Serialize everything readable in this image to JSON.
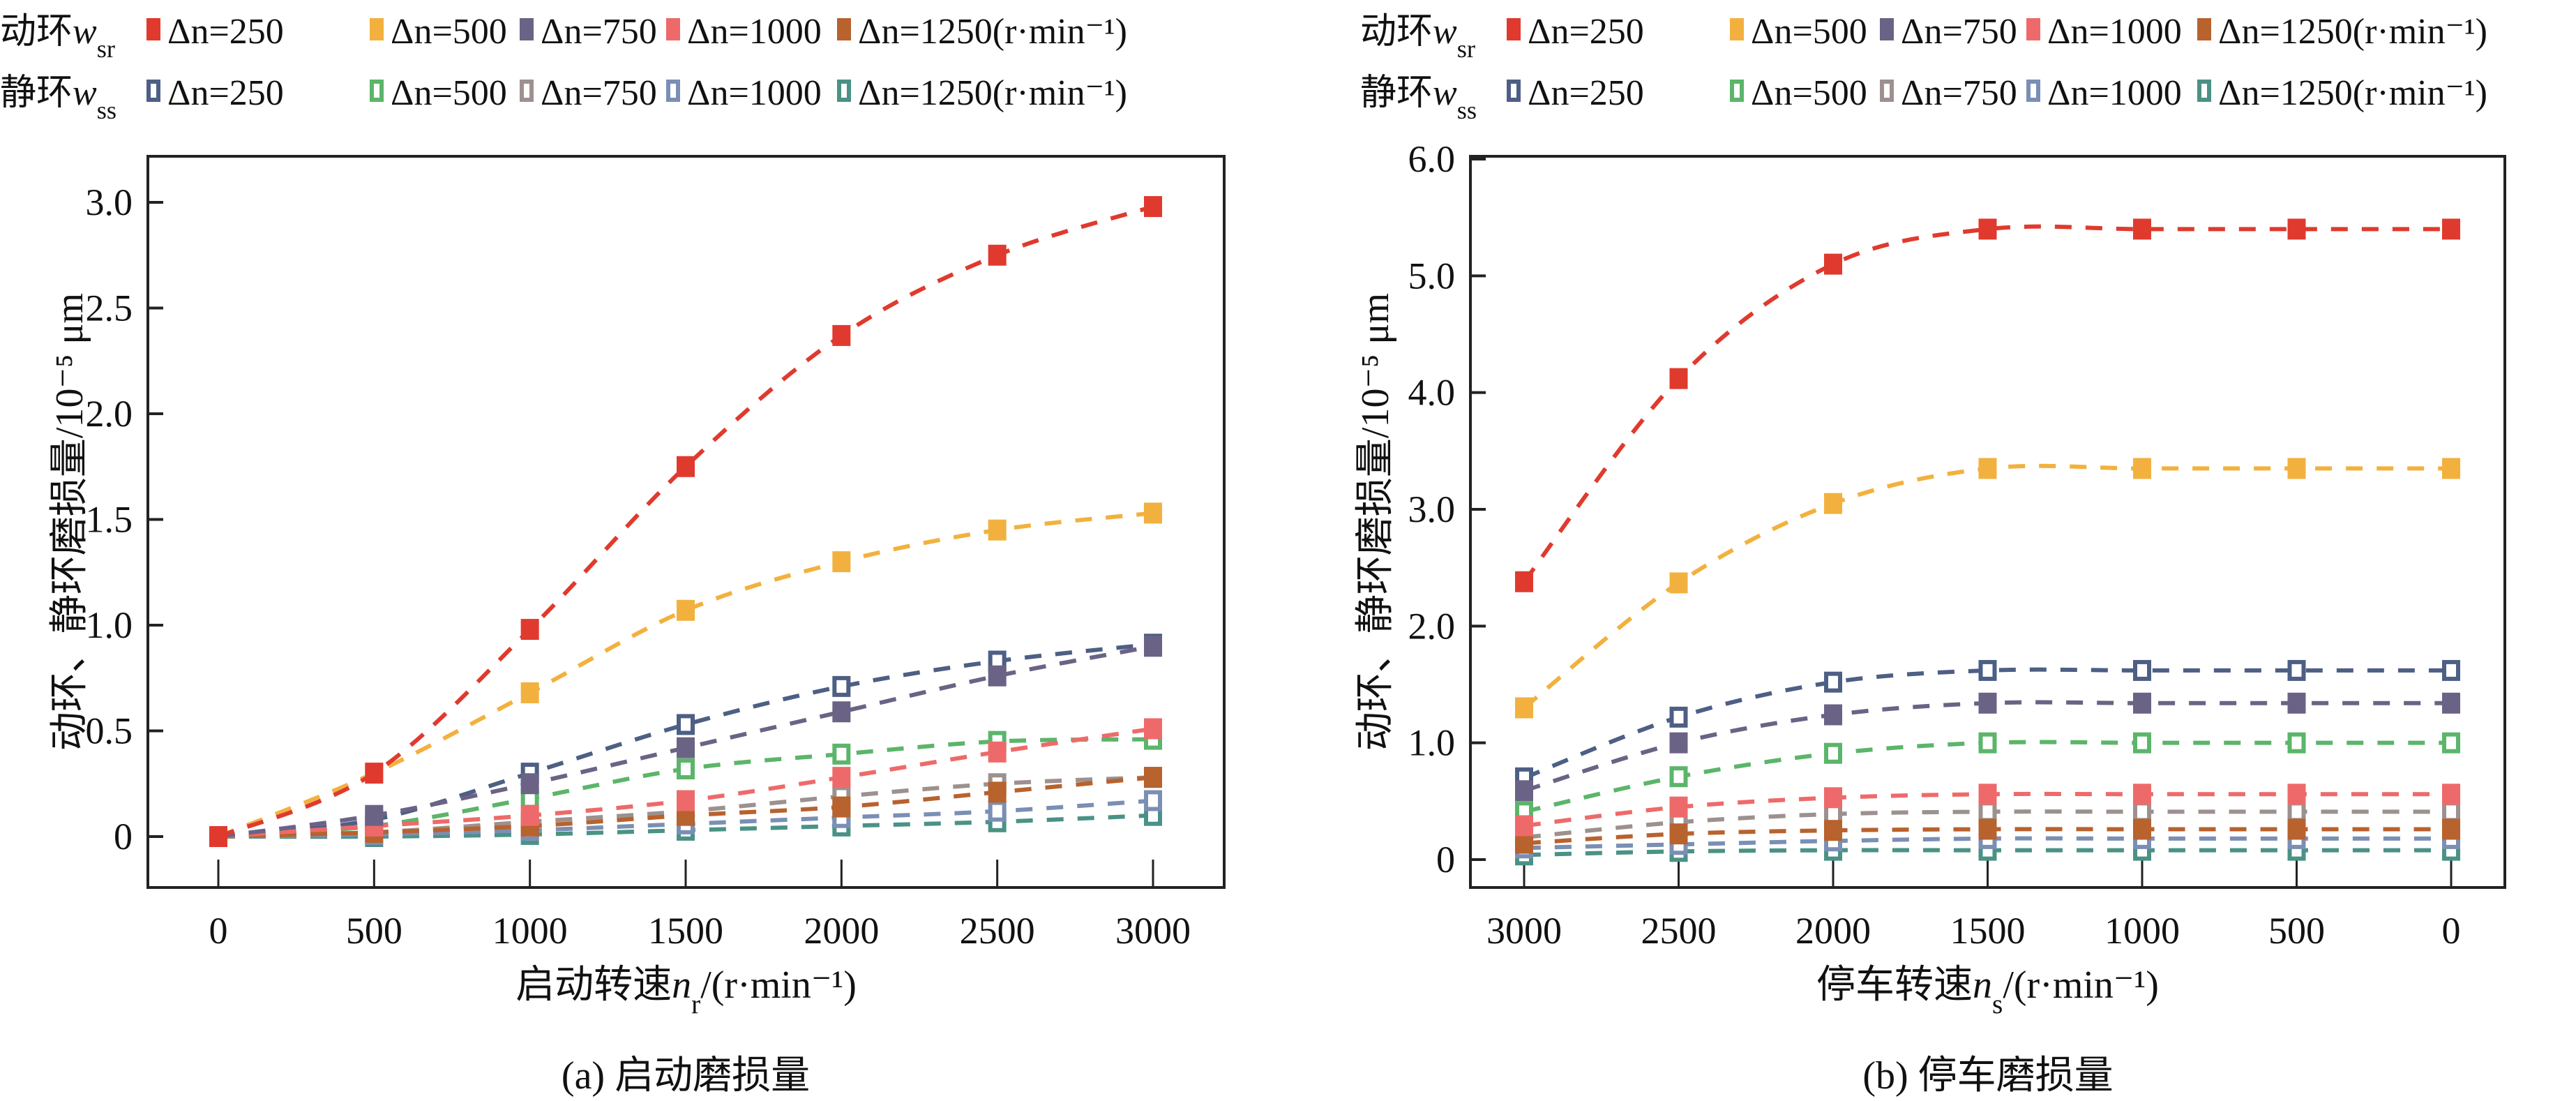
{
  "legend": {
    "rows": [
      {
        "title": "动环",
        "var": "w",
        "sub": "sr",
        "filled": true,
        "entries": [
          "Δn=250",
          "Δn=500",
          "Δn=750",
          "Δn=1000",
          "Δn=1250(r·min⁻¹)"
        ],
        "colors": [
          "#e03a2e",
          "#f2b13e",
          "#6b6385",
          "#ee6a6a",
          "#b8622e"
        ]
      },
      {
        "title": "静环",
        "var": "w",
        "sub": "ss",
        "filled": false,
        "entries": [
          "Δn=250",
          "Δn=500",
          "Δn=750",
          "Δn=1000",
          "Δn=1250(r·min⁻¹)"
        ],
        "colors": [
          "#4d5f84",
          "#5bb56a",
          "#9c918e",
          "#7b8fb5",
          "#4a9285"
        ]
      }
    ]
  },
  "chart_data": [
    {
      "type": "line",
      "caption": "(a) 启动磨损量",
      "xlabel": "启动转速n_r/(r·min⁻¹)",
      "ylabel": "动环、静环磨损量/10⁻⁵ μm",
      "x": [
        0,
        500,
        1000,
        1500,
        2000,
        2500,
        3000
      ],
      "xticks": [
        "0",
        "500",
        "1000",
        "1500",
        "2000",
        "2500",
        "3000"
      ],
      "yticks": [
        "0",
        "0.5",
        "1.0",
        "1.5",
        "2.0",
        "2.5",
        "3.0"
      ],
      "ylim": [
        0,
        3.0
      ],
      "xlim": [
        0,
        3000
      ],
      "x_reversed": false,
      "grid": false,
      "series": [
        {
          "name": "动环w_sr Δn=250",
          "color": "#e03a2e",
          "filled": true,
          "values": [
            0,
            0.3,
            0.98,
            1.75,
            2.37,
            2.75,
            2.98
          ]
        },
        {
          "name": "动环w_sr Δn=500",
          "color": "#f2b13e",
          "filled": true,
          "values": [
            0,
            0.3,
            0.68,
            1.07,
            1.3,
            1.45,
            1.53
          ]
        },
        {
          "name": "动环w_sr Δn=750",
          "color": "#6b6385",
          "filled": true,
          "values": [
            0,
            0.1,
            0.25,
            0.42,
            0.59,
            0.76,
            0.9
          ]
        },
        {
          "name": "动环w_sr Δn=1000",
          "color": "#ee6a6a",
          "filled": true,
          "values": [
            0,
            0.05,
            0.1,
            0.17,
            0.28,
            0.4,
            0.51
          ]
        },
        {
          "name": "动环w_sr Δn=1250",
          "color": "#b8622e",
          "filled": true,
          "values": [
            0,
            0.02,
            0.05,
            0.1,
            0.14,
            0.21,
            0.28
          ]
        },
        {
          "name": "静环w_ss Δn=250",
          "color": "#4d5f84",
          "filled": false,
          "values": [
            0,
            0.08,
            0.3,
            0.53,
            0.71,
            0.83,
            0.91
          ]
        },
        {
          "name": "静环w_ss Δn=500",
          "color": "#5bb56a",
          "filled": false,
          "values": [
            0,
            0.05,
            0.18,
            0.32,
            0.39,
            0.45,
            0.46
          ]
        },
        {
          "name": "静环w_ss Δn=750",
          "color": "#9c918e",
          "filled": false,
          "values": [
            0,
            0.02,
            0.07,
            0.12,
            0.19,
            0.25,
            0.28
          ]
        },
        {
          "name": "静环w_ss Δn=1000",
          "color": "#7b8fb5",
          "filled": false,
          "values": [
            0,
            0.01,
            0.03,
            0.06,
            0.09,
            0.12,
            0.17
          ]
        },
        {
          "name": "静环w_ss Δn=1250",
          "color": "#4a9285",
          "filled": false,
          "values": [
            0,
            0.0,
            0.01,
            0.03,
            0.05,
            0.07,
            0.1
          ]
        }
      ]
    },
    {
      "type": "line",
      "caption": "(b) 停车磨损量",
      "xlabel": "停车转速n_s/(r·min⁻¹)",
      "ylabel": "动环、静环磨损量/10⁻⁵ μm",
      "x": [
        3000,
        2500,
        2000,
        1500,
        1000,
        500,
        0
      ],
      "xticks": [
        "3000",
        "2500",
        "2000",
        "1500",
        "1000",
        "500",
        "0"
      ],
      "yticks": [
        "0",
        "1.0",
        "2.0",
        "3.0",
        "4.0",
        "5.0",
        "6.0"
      ],
      "ylim": [
        0,
        6.0
      ],
      "xlim": [
        3000,
        0
      ],
      "x_reversed": true,
      "grid": false,
      "series": [
        {
          "name": "动环w_sr Δn=250",
          "color": "#e03a2e",
          "filled": true,
          "values": [
            2.38,
            4.12,
            5.1,
            5.4,
            5.4,
            5.4,
            5.4
          ]
        },
        {
          "name": "动环w_sr Δn=500",
          "color": "#f2b13e",
          "filled": true,
          "values": [
            1.3,
            2.37,
            3.05,
            3.35,
            3.35,
            3.35,
            3.35
          ]
        },
        {
          "name": "动环w_sr Δn=750",
          "color": "#6b6385",
          "filled": true,
          "values": [
            0.59,
            1.0,
            1.24,
            1.34,
            1.34,
            1.34,
            1.34
          ]
        },
        {
          "name": "动环w_sr Δn=1000",
          "color": "#ee6a6a",
          "filled": true,
          "values": [
            0.29,
            0.45,
            0.53,
            0.56,
            0.56,
            0.56,
            0.56
          ]
        },
        {
          "name": "动环w_sr Δn=1250",
          "color": "#b8622e",
          "filled": true,
          "values": [
            0.14,
            0.22,
            0.25,
            0.26,
            0.26,
            0.26,
            0.26
          ]
        },
        {
          "name": "静环w_ss Δn=250",
          "color": "#4d5f84",
          "filled": false,
          "values": [
            0.7,
            1.22,
            1.52,
            1.62,
            1.62,
            1.62,
            1.62
          ]
        },
        {
          "name": "静环w_ss Δn=500",
          "color": "#5bb56a",
          "filled": false,
          "values": [
            0.41,
            0.71,
            0.91,
            1.0,
            1.0,
            1.0,
            1.0
          ]
        },
        {
          "name": "静环w_ss Δn=750",
          "color": "#9c918e",
          "filled": false,
          "values": [
            0.19,
            0.32,
            0.39,
            0.41,
            0.41,
            0.41,
            0.41
          ]
        },
        {
          "name": "静环w_ss Δn=1000",
          "color": "#7b8fb5",
          "filled": false,
          "values": [
            0.1,
            0.13,
            0.16,
            0.18,
            0.18,
            0.18,
            0.18
          ]
        },
        {
          "name": "静环w_ss Δn=1250",
          "color": "#4a9285",
          "filled": false,
          "values": [
            0.04,
            0.07,
            0.08,
            0.08,
            0.08,
            0.08,
            0.08
          ]
        }
      ]
    }
  ]
}
